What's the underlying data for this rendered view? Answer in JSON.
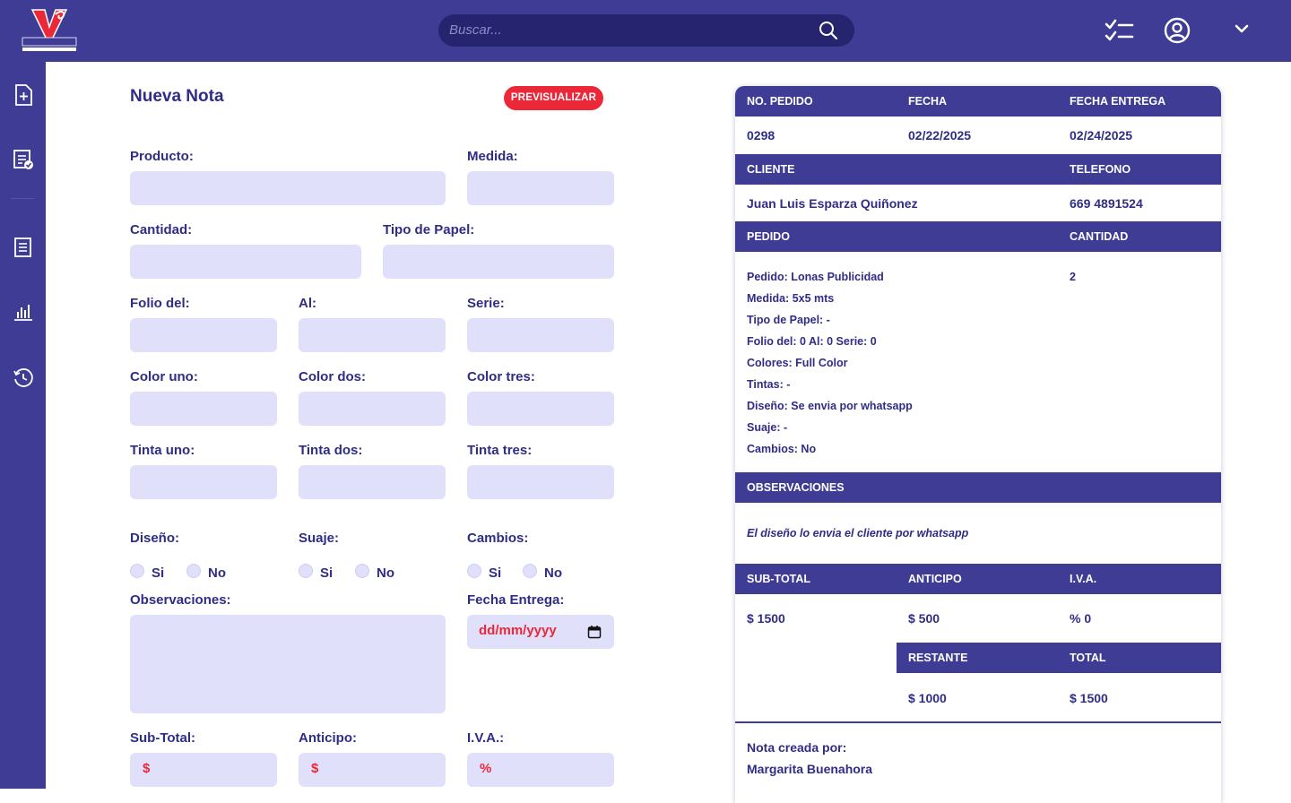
{
  "brand": {
    "logo_text": "VENADO",
    "logo_subtext": "IMPRENTA & PAPELERIA"
  },
  "header": {
    "search_placeholder": "Buscar...",
    "icons": [
      "search-icon",
      "checklist-icon",
      "user-circle-icon",
      "chevron-down-icon"
    ]
  },
  "sidebar": {
    "items": [
      {
        "name": "new-note-icon"
      },
      {
        "name": "notes-list-icon"
      },
      {
        "name": "receipt-icon"
      },
      {
        "name": "bar-chart-icon"
      },
      {
        "name": "history-icon"
      }
    ]
  },
  "form": {
    "title": "Nueva Nota",
    "preview_button": "PREVISUALIZAR",
    "labels": {
      "producto": "Producto:",
      "medida": "Medida:",
      "cantidad": "Cantidad:",
      "tipo_papel": "Tipo de Papel:",
      "folio_del": "Folio del:",
      "al": "Al:",
      "serie": "Serie:",
      "color_uno": "Color uno:",
      "color_dos": "Color dos:",
      "color_tres": "Color tres:",
      "tinta_uno": "Tinta uno:",
      "tinta_dos": "Tinta dos:",
      "tinta_tres": "Tinta tres:",
      "diseno": "Diseño:",
      "suaje": "Suaje:",
      "cambios": "Cambios:",
      "observaciones": "Observaciones:",
      "fecha_entrega": "Fecha Entrega:",
      "subtotal": "Sub-Total:",
      "anticipo": "Anticipo:",
      "iva": "I.V.A.:"
    },
    "radio_yes": "Si",
    "radio_no": "No",
    "date_placeholder": "dd/mm/yyyy",
    "currency_prefix": "$",
    "percent_prefix": "%"
  },
  "preview": {
    "headers": {
      "no_pedido": "NO. PEDIDO",
      "fecha": "FECHA",
      "fecha_entrega": "FECHA ENTREGA",
      "cliente": "CLIENTE",
      "telefono": "TELEFONO",
      "pedido": "PEDIDO",
      "cantidad": "CANTIDAD",
      "observaciones": "OBSERVACIONES",
      "subtotal": "SUB-TOTAL",
      "anticipo": "ANTICIPO",
      "iva": "I.V.A.",
      "restante": "RESTANTE",
      "total": "TOTAL"
    },
    "no_pedido": "0298",
    "fecha": "02/22/2025",
    "fecha_entrega": "02/24/2025",
    "cliente": "Juan Luis Esparza Quiñonez",
    "telefono": "669 4891524",
    "details": [
      "Pedido: Lonas Publicidad",
      "Medida: 5x5 mts",
      "Tipo de Papel: -",
      "Folio del: 0 Al: 0 Serie: 0",
      "Colores: Full Color",
      "Tintas: -",
      "Diseño: Se envia por whatsapp",
      "Suaje: -",
      "Cambios: No"
    ],
    "cantidad": "2",
    "observaciones": "El diseño lo envia el cliente por whatsapp",
    "subtotal": "$ 1500",
    "anticipo": "$ 500",
    "iva": "% 0",
    "restante": "$ 1000",
    "total": "$ 1500",
    "created_by_label": "Nota creada por:",
    "created_by": "Margarita Buenahora"
  },
  "colors": {
    "primary": "#3f3c95",
    "search_bg": "#26246e",
    "input_bg": "#e1e0fb",
    "accent_red": "#ea2838",
    "text": "#2f2d86"
  }
}
